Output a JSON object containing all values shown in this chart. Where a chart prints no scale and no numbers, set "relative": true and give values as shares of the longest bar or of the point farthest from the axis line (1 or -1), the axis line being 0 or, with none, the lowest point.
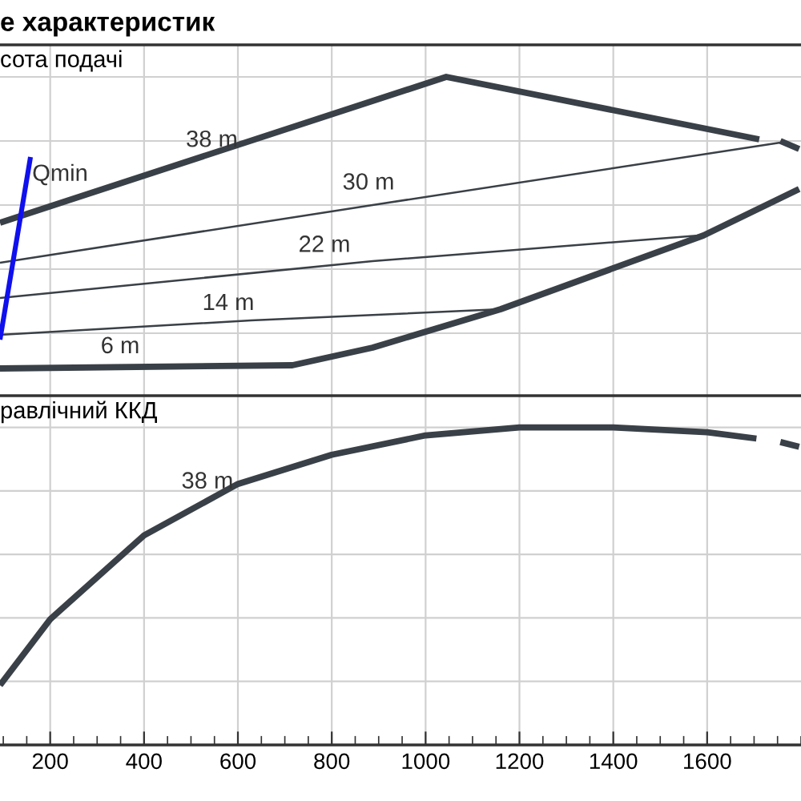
{
  "chart_data": [
    {
      "type": "line",
      "title": "е характеристик",
      "ylabel": "сота подачі",
      "relative": true,
      "grid": true,
      "legend": false,
      "tick_labels": false,
      "marker": "none",
      "line_style": "solid",
      "xlim": [
        93,
        1800
      ],
      "xticks": [
        200,
        400,
        600,
        800,
        1000,
        1200,
        1400,
        1600
      ],
      "series": [
        {
          "name": "38 m",
          "color": "#3a4047",
          "x": [
            93,
            1044,
            1711,
            1730,
            1756,
            1796
          ],
          "values": [
            0.545,
            1.0,
            0.805,
            null,
            0.8,
            0.775
          ]
        },
        {
          "name": "30 m",
          "color": "#3a4047",
          "x": [
            93,
            887,
            1756
          ],
          "values": [
            0.42,
            0.6,
            0.795
          ]
        },
        {
          "name": "22 m",
          "color": "#3a4047",
          "x": [
            93,
            887,
            1582
          ],
          "values": [
            0.31,
            0.425,
            0.505
          ]
        },
        {
          "name": "14 m",
          "color": "#3a4047",
          "x": [
            93,
            628,
            1160
          ],
          "values": [
            0.195,
            0.24,
            0.275
          ]
        },
        {
          "name": "6 m",
          "color": "#3a4047",
          "x": [
            93,
            716,
            887,
            1160,
            1592,
            1796
          ],
          "values": [
            0.09,
            0.1,
            0.155,
            0.275,
            0.505,
            0.65
          ]
        },
        {
          "name": "Qmin",
          "color": "#1010ee",
          "x": [
            93,
            158
          ],
          "values": [
            0.18,
            0.75
          ]
        }
      ]
    },
    {
      "type": "line",
      "ylabel": "равлічний ККД",
      "relative": true,
      "grid": true,
      "legend": false,
      "tick_labels": "x",
      "marker": "none",
      "line_style": "solid",
      "xlim": [
        93,
        1800
      ],
      "xticks": [
        {
          "value": 100,
          "label": null
        },
        {
          "value": 150,
          "label": null
        },
        200,
        {
          "value": 250,
          "label": null
        },
        {
          "value": 300,
          "label": null
        },
        {
          "value": 350,
          "label": null
        },
        400,
        {
          "value": 450,
          "label": null
        },
        {
          "value": 500,
          "label": null
        },
        {
          "value": 550,
          "label": null
        },
        600,
        {
          "value": 650,
          "label": null
        },
        {
          "value": 700,
          "label": null
        },
        {
          "value": 750,
          "label": null
        },
        800,
        {
          "value": 850,
          "label": null
        },
        {
          "value": 900,
          "label": null
        },
        {
          "value": 950,
          "label": null
        },
        1000,
        {
          "value": 1050,
          "label": null
        },
        {
          "value": 1100,
          "label": null
        },
        {
          "value": 1150,
          "label": null
        },
        1200,
        {
          "value": 1250,
          "label": null
        },
        {
          "value": 1300,
          "label": null
        },
        {
          "value": 1350,
          "label": null
        },
        1400,
        {
          "value": 1450,
          "label": null
        },
        {
          "value": 1500,
          "label": null
        },
        {
          "value": 1550,
          "label": null
        },
        1600,
        {
          "value": 1650,
          "label": null
        },
        {
          "value": 1700,
          "label": null
        },
        {
          "value": 1750,
          "label": null
        },
        {
          "value": 1800,
          "label": null
        }
      ],
      "series": [
        {
          "name": "38 m",
          "color": "#3a4047",
          "x": [
            93,
            200,
            400,
            600,
            800,
            1000,
            1200,
            1300,
            1400,
            1600,
            1705,
            1730,
            1756,
            1796
          ],
          "values": [
            0.188,
            0.396,
            0.66,
            0.822,
            0.914,
            0.975,
            1.0,
            1.0,
            1.0,
            0.985,
            0.965,
            null,
            0.954,
            0.939
          ]
        }
      ]
    }
  ]
}
